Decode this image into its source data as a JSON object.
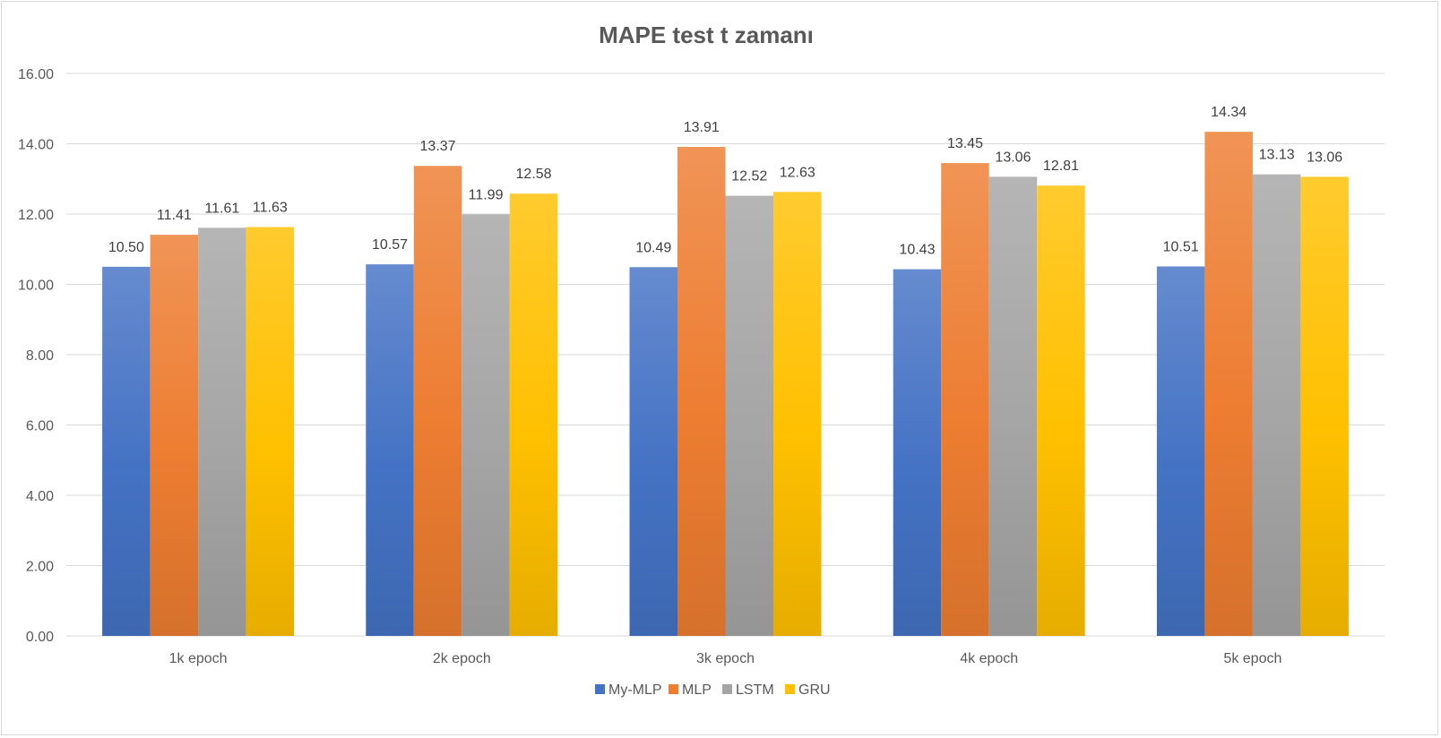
{
  "chart_data": {
    "type": "bar",
    "title": "MAPE test t  zamanı",
    "categories": [
      "1k epoch",
      "2k epoch",
      "3k epoch",
      "4k epoch",
      "5k epoch"
    ],
    "series": [
      {
        "name": "My-MLP",
        "color": "#4472C4",
        "values": [
          10.5,
          10.57,
          10.49,
          10.43,
          10.51
        ]
      },
      {
        "name": "MLP",
        "color": "#ED7D31",
        "values": [
          11.41,
          13.37,
          13.91,
          13.45,
          14.34
        ]
      },
      {
        "name": "LSTM",
        "color": "#A5A5A5",
        "values": [
          11.61,
          11.99,
          12.52,
          13.06,
          13.13
        ]
      },
      {
        "name": "GRU",
        "color": "#FFC000",
        "values": [
          11.63,
          12.58,
          12.63,
          12.81,
          13.06
        ]
      }
    ],
    "ylim": [
      0,
      16
    ],
    "yticks": [
      "0.00",
      "2.00",
      "4.00",
      "6.00",
      "8.00",
      "10.00",
      "12.00",
      "14.00",
      "16.00"
    ],
    "xlabel": "",
    "ylabel": "",
    "grid": true,
    "legend": "bottom"
  }
}
